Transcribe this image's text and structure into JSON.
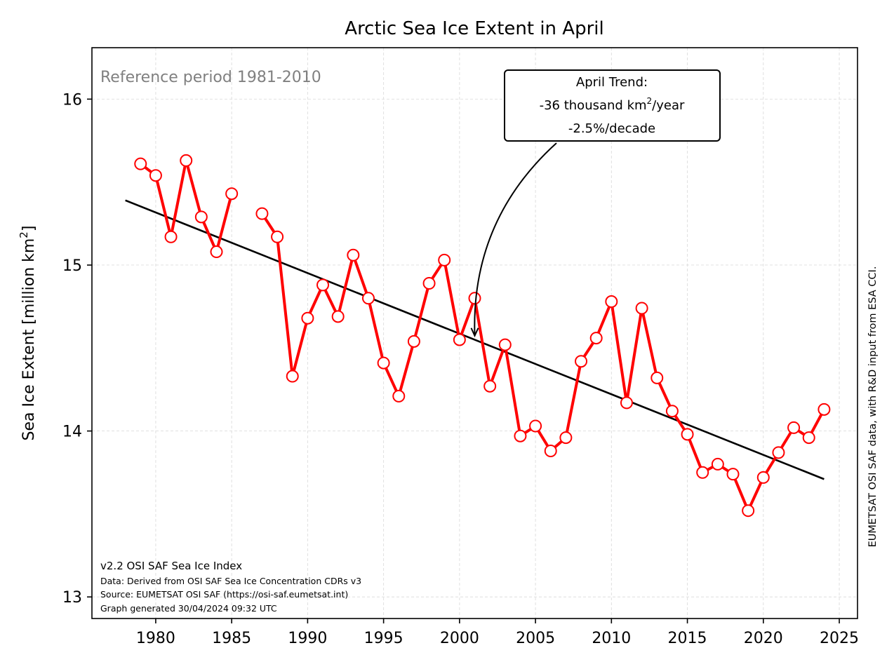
{
  "chart_data": {
    "type": "line",
    "title": "Arctic Sea Ice Extent in April",
    "ylabel_main": "Sea Ice Extent [million km",
    "ylabel_sup": "2",
    "ylabel_end": "]",
    "xlim": [
      1975.8,
      2026.2
    ],
    "ylim": [
      12.87,
      16.31
    ],
    "x_ticks": [
      1980,
      1985,
      1990,
      1995,
      2000,
      2005,
      2010,
      2015,
      2020,
      2025
    ],
    "y_ticks": [
      13,
      14,
      15,
      16
    ],
    "grid": true,
    "reference_text": "Reference period 1981-2010",
    "series": [
      {
        "color": "#ff0000",
        "segments": [
          {
            "x": [
              1979,
              1980,
              1981,
              1982,
              1983,
              1984,
              1985
            ],
            "y": [
              15.61,
              15.54,
              15.17,
              15.63,
              15.29,
              15.08,
              15.43
            ]
          },
          {
            "x": [
              1987,
              1988,
              1989,
              1990,
              1991,
              1992,
              1993,
              1994,
              1995,
              1996,
              1997,
              1998,
              1999,
              2000,
              2001,
              2002,
              2003,
              2004,
              2005,
              2006,
              2007,
              2008,
              2009,
              2010,
              2011,
              2012,
              2013,
              2014,
              2015,
              2016,
              2017,
              2018,
              2019,
              2020,
              2021,
              2022,
              2023,
              2024
            ],
            "y": [
              15.31,
              15.17,
              14.33,
              14.68,
              14.88,
              14.69,
              15.06,
              14.8,
              14.41,
              14.21,
              14.54,
              14.89,
              15.03,
              14.55,
              14.8,
              14.27,
              14.52,
              13.97,
              14.03,
              13.88,
              13.96,
              14.42,
              14.56,
              14.78,
              14.17,
              14.74,
              14.32,
              14.12,
              13.98,
              13.75,
              13.8,
              13.74,
              13.52,
              13.72,
              13.87,
              14.02,
              13.96,
              14.13
            ]
          }
        ]
      }
    ],
    "trend_line": {
      "color": "#000000",
      "x": [
        1978,
        2024
      ],
      "y": [
        15.39,
        13.71
      ]
    },
    "annotation": {
      "line1": "April Trend:",
      "line2_pre": "-36 thousand km",
      "line2_sup": "2",
      "line2_post": "/year",
      "line3": "-2.5%/decade",
      "arrow_target": [
        2001,
        14.57
      ]
    },
    "footer": {
      "title": "v2.2 OSI SAF Sea Ice Index",
      "line1": "Data: Derived from OSI SAF Sea Ice Concentration CDRs v3",
      "line2": "Source: EUMETSAT OSI SAF (https://osi-saf.eumetsat.int)",
      "line3": "Graph generated 30/04/2024 09:32 UTC"
    },
    "side_credit": "EUMETSAT OSI SAF data, with R&D input from ESA CCI."
  }
}
